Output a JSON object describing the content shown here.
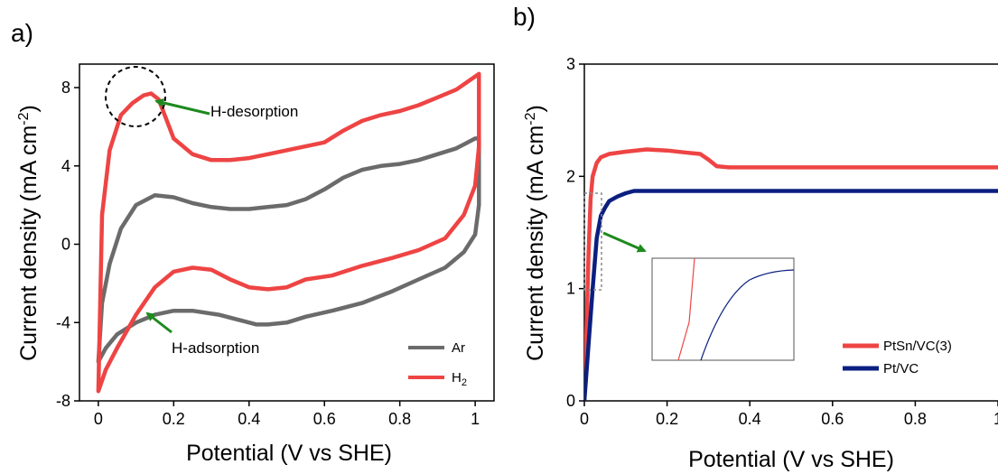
{
  "colors": {
    "ar": "#6b6b6b",
    "h2": "#ee4444",
    "ptsn": "#ee4444",
    "pt": "#0b1f80",
    "arrow": "#1e8a1e"
  },
  "chart_data": [
    {
      "panel_label": "a)",
      "type": "line",
      "xlabel": "Potential (V vs SHE)",
      "ylabel": "Current density (mA cm",
      "ylabel_sup": "-2",
      "ylabel_end": ")",
      "xlim": [
        -0.05,
        1.05
      ],
      "ylim": [
        -8,
        9.2
      ],
      "xticks": [
        "0",
        "0.2",
        "0.4",
        "0.6",
        "0.8",
        "1"
      ],
      "xtick_values": [
        0,
        0.2,
        0.4,
        0.6,
        0.8,
        1.0
      ],
      "yticks": [
        "-8",
        "-4",
        "0",
        "4",
        "8"
      ],
      "ytick_values": [
        -8,
        -4,
        0,
        4,
        8
      ],
      "legend": {
        "position": "bottom-right",
        "ar": "Ar",
        "h2_base": "H",
        "h2_sub": "2"
      },
      "annotations": {
        "desorption": "H-desorption",
        "adsorption": "H-adsorption"
      },
      "series": [
        {
          "name": "Ar",
          "x": [
            0.0,
            0.01,
            0.03,
            0.06,
            0.1,
            0.15,
            0.2,
            0.25,
            0.3,
            0.35,
            0.4,
            0.45,
            0.5,
            0.55,
            0.6,
            0.65,
            0.7,
            0.75,
            0.8,
            0.85,
            0.9,
            0.95,
            0.98,
            1.0,
            1.01,
            1.01,
            1.0,
            0.97,
            0.92,
            0.85,
            0.78,
            0.7,
            0.62,
            0.55,
            0.5,
            0.45,
            0.42,
            0.38,
            0.32,
            0.25,
            0.2,
            0.15,
            0.1,
            0.05,
            0.02,
            0.0
          ],
          "y": [
            -6.0,
            -3.0,
            -1.0,
            0.8,
            2.0,
            2.5,
            2.4,
            2.1,
            1.9,
            1.8,
            1.8,
            1.9,
            2.0,
            2.3,
            2.8,
            3.4,
            3.8,
            4.0,
            4.1,
            4.3,
            4.6,
            4.9,
            5.2,
            5.4,
            5.4,
            2.0,
            0.5,
            -0.4,
            -1.2,
            -1.8,
            -2.4,
            -3.0,
            -3.4,
            -3.7,
            -4.0,
            -4.1,
            -4.1,
            -3.9,
            -3.6,
            -3.4,
            -3.4,
            -3.6,
            -4.0,
            -4.6,
            -5.3,
            -6.0
          ]
        },
        {
          "name": "H2",
          "x": [
            0.0,
            0.01,
            0.03,
            0.06,
            0.09,
            0.12,
            0.14,
            0.16,
            0.18,
            0.2,
            0.25,
            0.3,
            0.35,
            0.4,
            0.45,
            0.5,
            0.55,
            0.6,
            0.65,
            0.7,
            0.75,
            0.8,
            0.85,
            0.9,
            0.95,
            0.98,
            1.01,
            1.01,
            1.0,
            0.97,
            0.92,
            0.85,
            0.78,
            0.7,
            0.62,
            0.55,
            0.5,
            0.45,
            0.4,
            0.35,
            0.3,
            0.25,
            0.2,
            0.15,
            0.1,
            0.05,
            0.02,
            0.0
          ],
          "y": [
            -7.5,
            1.5,
            4.8,
            6.6,
            7.2,
            7.6,
            7.7,
            7.4,
            6.4,
            5.4,
            4.6,
            4.3,
            4.3,
            4.4,
            4.6,
            4.8,
            5.0,
            5.2,
            5.8,
            6.3,
            6.6,
            6.8,
            7.1,
            7.5,
            7.9,
            8.3,
            8.7,
            5.0,
            3.0,
            1.5,
            0.3,
            -0.3,
            -0.7,
            -1.1,
            -1.6,
            -1.8,
            -2.2,
            -2.3,
            -2.2,
            -1.8,
            -1.3,
            -1.2,
            -1.4,
            -2.2,
            -3.6,
            -5.3,
            -6.4,
            -7.5
          ]
        }
      ]
    },
    {
      "panel_label": "b)",
      "type": "line",
      "xlabel": "Potential (V vs SHE)",
      "ylabel": "Current density (mA cm",
      "ylabel_sup": "-2",
      "ylabel_end": ")",
      "xlim": [
        0,
        1.0
      ],
      "ylim": [
        0,
        3
      ],
      "xticks": [
        "0",
        "0.2",
        "0.4",
        "0.6",
        "0.8",
        "1"
      ],
      "xtick_values": [
        0,
        0.2,
        0.4,
        0.6,
        0.8,
        1.0
      ],
      "yticks": [
        "0",
        "1",
        "2",
        "3"
      ],
      "ytick_values": [
        0,
        1,
        2,
        3
      ],
      "legend": {
        "position": "bottom-right",
        "ptsn": "PtSn/VC(3)",
        "pt": "Pt/VC"
      },
      "series": [
        {
          "name": "PtSn/VC(3)",
          "x": [
            0.0,
            0.005,
            0.01,
            0.015,
            0.02,
            0.03,
            0.04,
            0.06,
            0.1,
            0.15,
            0.2,
            0.25,
            0.28,
            0.3,
            0.32,
            0.35,
            0.4,
            0.6,
            0.8,
            1.0
          ],
          "y": [
            0.0,
            0.6,
            1.3,
            1.8,
            2.0,
            2.12,
            2.17,
            2.2,
            2.22,
            2.24,
            2.23,
            2.21,
            2.2,
            2.15,
            2.09,
            2.08,
            2.08,
            2.08,
            2.08,
            2.08
          ]
        },
        {
          "name": "Pt/VC",
          "x": [
            0.0,
            0.005,
            0.01,
            0.02,
            0.03,
            0.04,
            0.05,
            0.06,
            0.08,
            0.1,
            0.12,
            0.2,
            0.4,
            0.6,
            0.8,
            1.0
          ],
          "y": [
            0.0,
            0.25,
            0.5,
            1.0,
            1.45,
            1.65,
            1.72,
            1.78,
            1.82,
            1.85,
            1.87,
            1.87,
            1.87,
            1.87,
            1.87,
            1.87
          ]
        }
      ]
    }
  ]
}
